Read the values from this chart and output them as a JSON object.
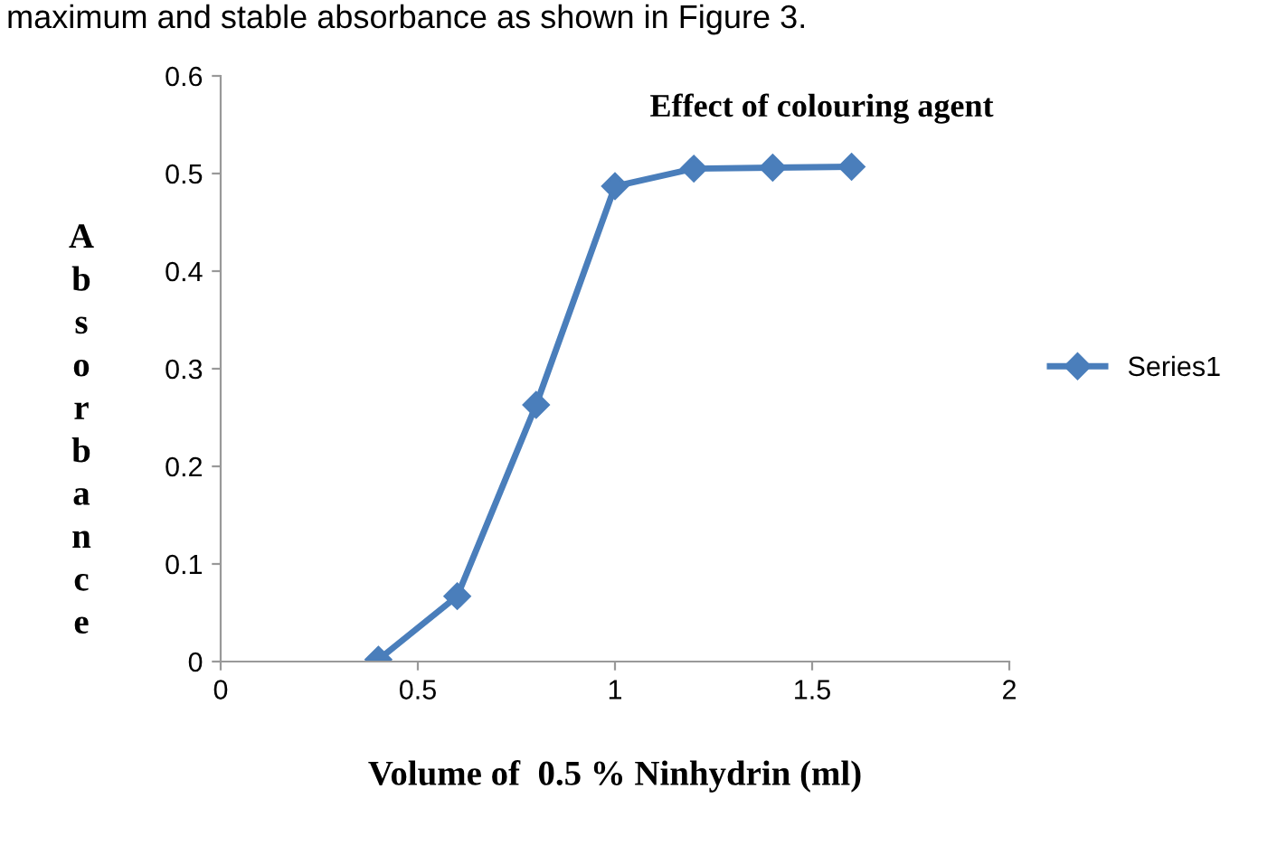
{
  "chart_data": {
    "type": "line",
    "title": "Effect of colouring agent",
    "xlabel": "Volume of  0.5 % Ninhydrin (ml)",
    "ylabel": "Absorbance",
    "annotations": [
      "maximum and stable absorbance as shown in Figure 3."
    ],
    "x": [
      0.4,
      0.6,
      0.8,
      1.0,
      1.2,
      1.4,
      1.6
    ],
    "series": [
      {
        "name": "Series1",
        "color": "#4a7ebb",
        "values": [
          0.002,
          0.067,
          0.263,
          0.487,
          0.505,
          0.506,
          0.507
        ]
      }
    ],
    "xlim": [
      0,
      2
    ],
    "xticks": [
      0,
      0.5,
      1,
      1.5,
      2
    ],
    "ylim": [
      0,
      0.6
    ],
    "yticks": [
      0,
      0.1,
      0.2,
      0.3,
      0.4,
      0.5,
      0.6
    ],
    "grid": false,
    "legend": "right",
    "marker": "diamond",
    "line_style": "solid"
  }
}
